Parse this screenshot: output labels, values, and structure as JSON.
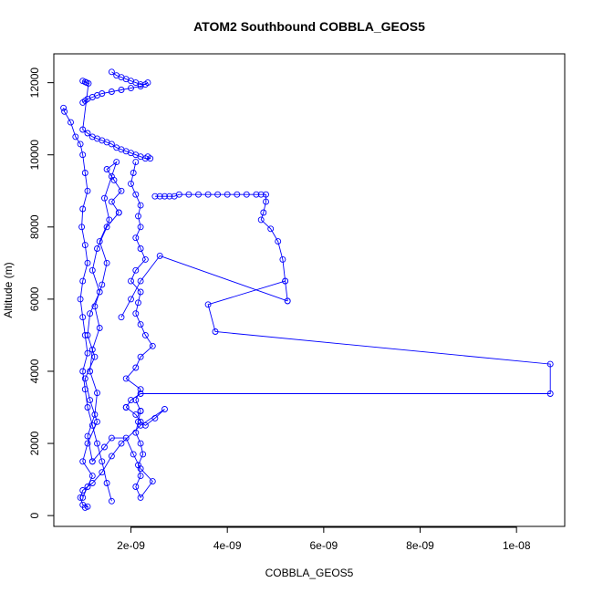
{
  "chart_data": {
    "type": "scatter",
    "title": "ATOM2 Southbound COBBLA_GEOS5",
    "xlabel": "COBBLA_GEOS5",
    "ylabel": "Altitude (m)",
    "xlim": [
      4e-10,
      1.1e-08
    ],
    "ylim": [
      -300,
      12800
    ],
    "x_ticks": [
      {
        "value": 2e-09,
        "label": "2e-09"
      },
      {
        "value": 4e-09,
        "label": "4e-09"
      },
      {
        "value": 6e-09,
        "label": "6e-09"
      },
      {
        "value": 8e-09,
        "label": "8e-09"
      },
      {
        "value": 1e-08,
        "label": "1e-08"
      }
    ],
    "y_ticks": [
      {
        "value": 0,
        "label": "0"
      },
      {
        "value": 2000,
        "label": "2000"
      },
      {
        "value": 4000,
        "label": "4000"
      },
      {
        "value": 6000,
        "label": "6000"
      },
      {
        "value": 8000,
        "label": "8000"
      },
      {
        "value": 10000,
        "label": "10000"
      },
      {
        "value": 12000,
        "label": "12000"
      }
    ],
    "grid": false,
    "legend": "none",
    "color": "#0000ff",
    "series": [
      {
        "x": [
          6e-10,
          6.2e-10,
          7.5e-10,
          8.5e-10,
          9.5e-10,
          1e-09,
          1.05e-09,
          1.1e-09,
          1e-09,
          9.8e-10,
          1.05e-09,
          1.1e-09,
          1e-09,
          9.5e-10,
          1e-09,
          1.05e-09,
          1.1e-09,
          1e-09,
          1.05e-09,
          1.1e-09,
          1.2e-09,
          1.3e-09,
          1.4e-09,
          1.5e-09,
          1.6e-09
        ],
        "y": [
          11300,
          11200,
          10900,
          10500,
          10300,
          10000,
          9500,
          9000,
          8500,
          8000,
          7500,
          7000,
          6500,
          6000,
          5500,
          5000,
          4500,
          4000,
          3500,
          3000,
          2500,
          2000,
          1500,
          900,
          400
        ]
      },
      {
        "x": [
          1.6e-09,
          1.7e-09,
          1.8e-09,
          1.9e-09,
          2e-09,
          2.1e-09,
          2.2e-09,
          2.3e-09,
          2.35e-09,
          2.2e-09,
          2e-09,
          1.8e-09,
          1.6e-09,
          1.4e-09,
          1.3e-09,
          1.2e-09,
          1.1e-09,
          1.05e-09,
          1e-09
        ],
        "y": [
          12300,
          12200,
          12150,
          12100,
          12050,
          12000,
          11950,
          11950,
          12000,
          11900,
          11850,
          11800,
          11750,
          11700,
          11650,
          11600,
          11550,
          11500,
          11450
        ]
      },
      {
        "x": [
          1e-09,
          1.05e-09,
          1.08e-09,
          1.12e-09,
          1e-09,
          1.1e-09,
          1.2e-09,
          1.3e-09,
          1.4e-09,
          1.5e-09,
          1.6e-09,
          1.7e-09,
          1.8e-09,
          1.9e-09,
          2e-09,
          2.1e-09,
          2.2e-09,
          2.3e-09,
          2.4e-09,
          2.35e-09
        ],
        "y": [
          12050,
          12020,
          12000,
          11980,
          10700,
          10600,
          10500,
          10450,
          10400,
          10350,
          10300,
          10200,
          10150,
          10100,
          10050,
          10000,
          9950,
          9900,
          9900,
          9950
        ]
      },
      {
        "x": [
          2.5e-09,
          2.6e-09,
          2.7e-09,
          2.8e-09,
          2.9e-09,
          3e-09,
          3.2e-09,
          3.4e-09,
          3.6e-09,
          3.8e-09,
          4e-09,
          4.2e-09,
          4.4e-09,
          4.6e-09,
          4.7e-09,
          4.8e-09,
          4.8e-09,
          4.75e-09,
          4.7e-09,
          4.9e-09,
          5.05e-09,
          5.15e-09,
          5.2e-09,
          5.25e-09
        ],
        "y": [
          8850,
          8850,
          8850,
          8850,
          8850,
          8900,
          8900,
          8900,
          8900,
          8900,
          8900,
          8900,
          8900,
          8900,
          8900,
          8900,
          8700,
          8400,
          8200,
          7950,
          7600,
          7100,
          6500,
          5950
        ]
      },
      {
        "x": [
          5.25e-09,
          2.6e-09,
          2.2e-09,
          2e-09,
          1.8e-09
        ],
        "y": [
          5950,
          7200,
          6500,
          6000,
          5500
        ]
      },
      {
        "x": [
          5.2e-09,
          3.6e-09,
          3.75e-09,
          1.07e-08,
          1.07e-08,
          2.2e-09,
          2e-09,
          1.9e-09
        ],
        "y": [
          6500,
          5850,
          5100,
          4200,
          3380,
          3380,
          3200,
          3000
        ]
      },
      {
        "x": [
          1.9e-09,
          2.1e-09,
          2.2e-09,
          2.3e-09,
          2.5e-09,
          2.7e-09,
          2.2e-09,
          1.8e-09,
          1.6e-09,
          1.4e-09,
          1.2e-09,
          1e-09,
          9.5e-10,
          1e-09,
          1.1e-09,
          1.05e-09
        ],
        "y": [
          3000,
          2800,
          2600,
          2500,
          2700,
          2950,
          2500,
          2000,
          1650,
          1200,
          900,
          700,
          500,
          300,
          250,
          220
        ]
      },
      {
        "x": [
          2.1e-09,
          2.05e-09,
          2e-09,
          2.1e-09,
          2.2e-09,
          2.15e-09,
          2.2e-09,
          2.1e-09,
          2.2e-09,
          2.3e-09,
          2.1e-09,
          2e-09,
          2.2e-09,
          2.15e-09,
          2.1e-09,
          2.2e-09,
          2.3e-09,
          2.45e-09,
          2.2e-09,
          2.1e-09,
          1.9e-09,
          2.2e-09,
          2.1e-09,
          2.2e-09
        ],
        "y": [
          9800,
          9500,
          9200,
          8900,
          8600,
          8300,
          8000,
          7700,
          7400,
          7100,
          6800,
          6500,
          6200,
          5900,
          5600,
          5300,
          5000,
          4700,
          4400,
          4100,
          3800,
          3500,
          3200,
          2900
        ]
      },
      {
        "x": [
          2.2e-09,
          2.15e-09,
          2.1e-09,
          2.2e-09,
          2.25e-09,
          2.15e-09,
          2.2e-09,
          2.1e-09,
          2.2e-09,
          2.45e-09,
          2.2e-09,
          2.05e-09,
          1.9e-09,
          1.6e-09,
          1.45e-09,
          1.2e-09
        ],
        "y": [
          2900,
          2600,
          2300,
          2000,
          1700,
          1400,
          1100,
          800,
          500,
          950,
          1300,
          1700,
          2150,
          2150,
          1900,
          1500
        ]
      },
      {
        "x": [
          1.2e-09,
          1.1e-09,
          1.25e-09,
          1.3e-09,
          1.15e-09,
          1.2e-09,
          1.35e-09,
          1.25e-09,
          1.4e-09,
          1.5e-09,
          1.35e-09,
          1.55e-09,
          1.45e-09,
          1.6e-09,
          1.7e-09,
          1.5e-09,
          1.65e-09,
          1.8e-09,
          1.6e-09,
          1.75e-09
        ],
        "y": [
          1500,
          2200,
          2800,
          3400,
          4000,
          4600,
          5200,
          5800,
          6400,
          7000,
          7600,
          8200,
          8800,
          9400,
          9800,
          9600,
          9300,
          9000,
          8700,
          8400
        ]
      },
      {
        "x": [
          1.75e-09,
          1.5e-09,
          1.3e-09,
          1.2e-09,
          1.35e-09,
          1.15e-09,
          1.1e-09,
          1.25e-09,
          1.05e-09,
          1.15e-09,
          1.3e-09,
          1.1e-09,
          1e-09,
          1.2e-09,
          1.1e-09,
          1e-09
        ],
        "y": [
          8400,
          8000,
          7400,
          6800,
          6200,
          5600,
          5000,
          4400,
          3800,
          3200,
          2600,
          2000,
          1500,
          1100,
          800,
          500
        ]
      }
    ]
  }
}
